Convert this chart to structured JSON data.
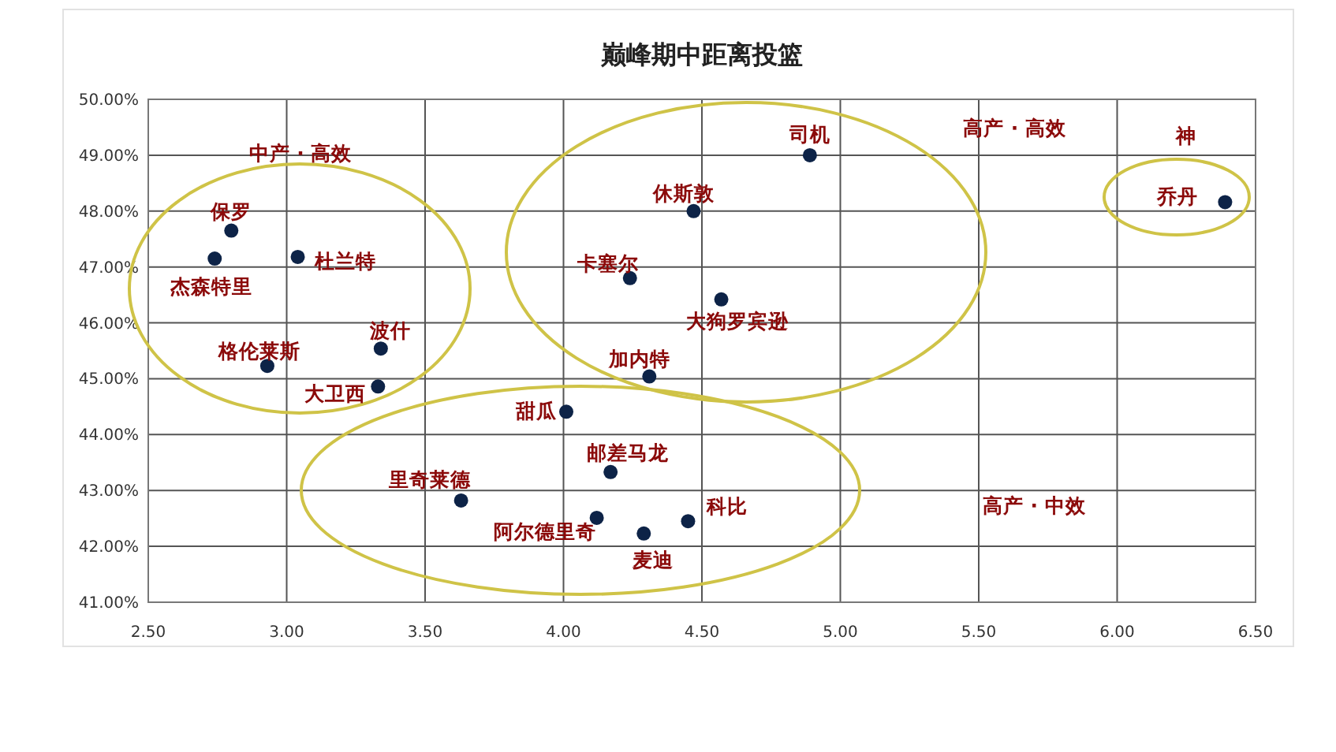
{
  "chart_data": {
    "type": "scatter",
    "title": "巅峰期中距离投篮",
    "series": [
      {
        "color": "#0d2347",
        "x": [
          2.8,
          2.74,
          3.04,
          3.34,
          2.93,
          3.33,
          4.24,
          4.47,
          4.89,
          4.57,
          4.31,
          6.39,
          4.01,
          4.17,
          3.63,
          4.12,
          4.29,
          4.45
        ],
        "values": [
          47.65,
          47.15,
          47.18,
          45.54,
          45.23,
          44.86,
          46.8,
          48.0,
          49.0,
          46.42,
          45.04,
          48.16,
          44.41,
          43.33,
          42.82,
          42.51,
          42.23,
          42.45
        ]
      }
    ],
    "annotations": [
      {
        "text": "保罗",
        "x": 2.8,
        "y": 47.65
      },
      {
        "text": "杰森特里",
        "x": 2.74,
        "y": 47.15
      },
      {
        "text": "杜兰特",
        "x": 3.04,
        "y": 47.18
      },
      {
        "text": "波什",
        "x": 3.34,
        "y": 45.54
      },
      {
        "text": "格伦莱斯",
        "x": 2.93,
        "y": 45.23
      },
      {
        "text": "大卫西",
        "x": 3.33,
        "y": 44.86
      },
      {
        "text": "卡塞尔",
        "x": 4.24,
        "y": 46.8
      },
      {
        "text": "休斯敦",
        "x": 4.47,
        "y": 48.0
      },
      {
        "text": "司机",
        "x": 4.89,
        "y": 49.0
      },
      {
        "text": "大狗罗宾逊",
        "x": 4.57,
        "y": 46.42
      },
      {
        "text": "加内特",
        "x": 4.31,
        "y": 45.04
      },
      {
        "text": "乔丹",
        "x": 6.39,
        "y": 48.16
      },
      {
        "text": "甜瓜",
        "x": 4.01,
        "y": 44.41
      },
      {
        "text": "邮差马龙",
        "x": 4.17,
        "y": 43.33
      },
      {
        "text": "里奇莱德",
        "x": 3.63,
        "y": 42.82
      },
      {
        "text": "阿尔德里奇",
        "x": 4.12,
        "y": 42.51
      },
      {
        "text": "麦迪",
        "x": 4.29,
        "y": 42.23
      },
      {
        "text": "科比",
        "x": 4.45,
        "y": 42.45
      },
      "中产 · 高效",
      "高产 · 高效",
      "神",
      "高产 · 中效"
    ],
    "xlim": [
      2.5,
      6.5
    ],
    "xticks": [
      {
        "value": 2.5,
        "label": "2.50"
      },
      {
        "value": 3,
        "label": "3.00"
      },
      {
        "value": 3.5,
        "label": "3.50"
      },
      {
        "value": 4,
        "label": "4.00"
      },
      {
        "value": 4.5,
        "label": "4.50"
      },
      {
        "value": 5,
        "label": "5.00"
      },
      {
        "value": 5.5,
        "label": "5.50"
      },
      {
        "value": 6,
        "label": "6.00"
      },
      {
        "value": 6.5,
        "label": "6.50"
      }
    ],
    "ylim": [
      41,
      50
    ],
    "yticks": [
      {
        "value": 41,
        "label": "41.00%"
      },
      {
        "value": 42,
        "label": "42.00%"
      },
      {
        "value": 43,
        "label": "43.00%"
      },
      {
        "value": 44,
        "label": "44.00%"
      },
      {
        "value": 45,
        "label": "45.00%"
      },
      {
        "value": 46,
        "label": "46.00%"
      },
      {
        "value": 47,
        "label": "47.00%"
      },
      {
        "value": 48,
        "label": "48.00%"
      },
      {
        "value": 49,
        "label": "49.00%"
      },
      {
        "value": 50,
        "label": "50.00%"
      }
    ],
    "grid": true,
    "marker": "circle"
  }
}
